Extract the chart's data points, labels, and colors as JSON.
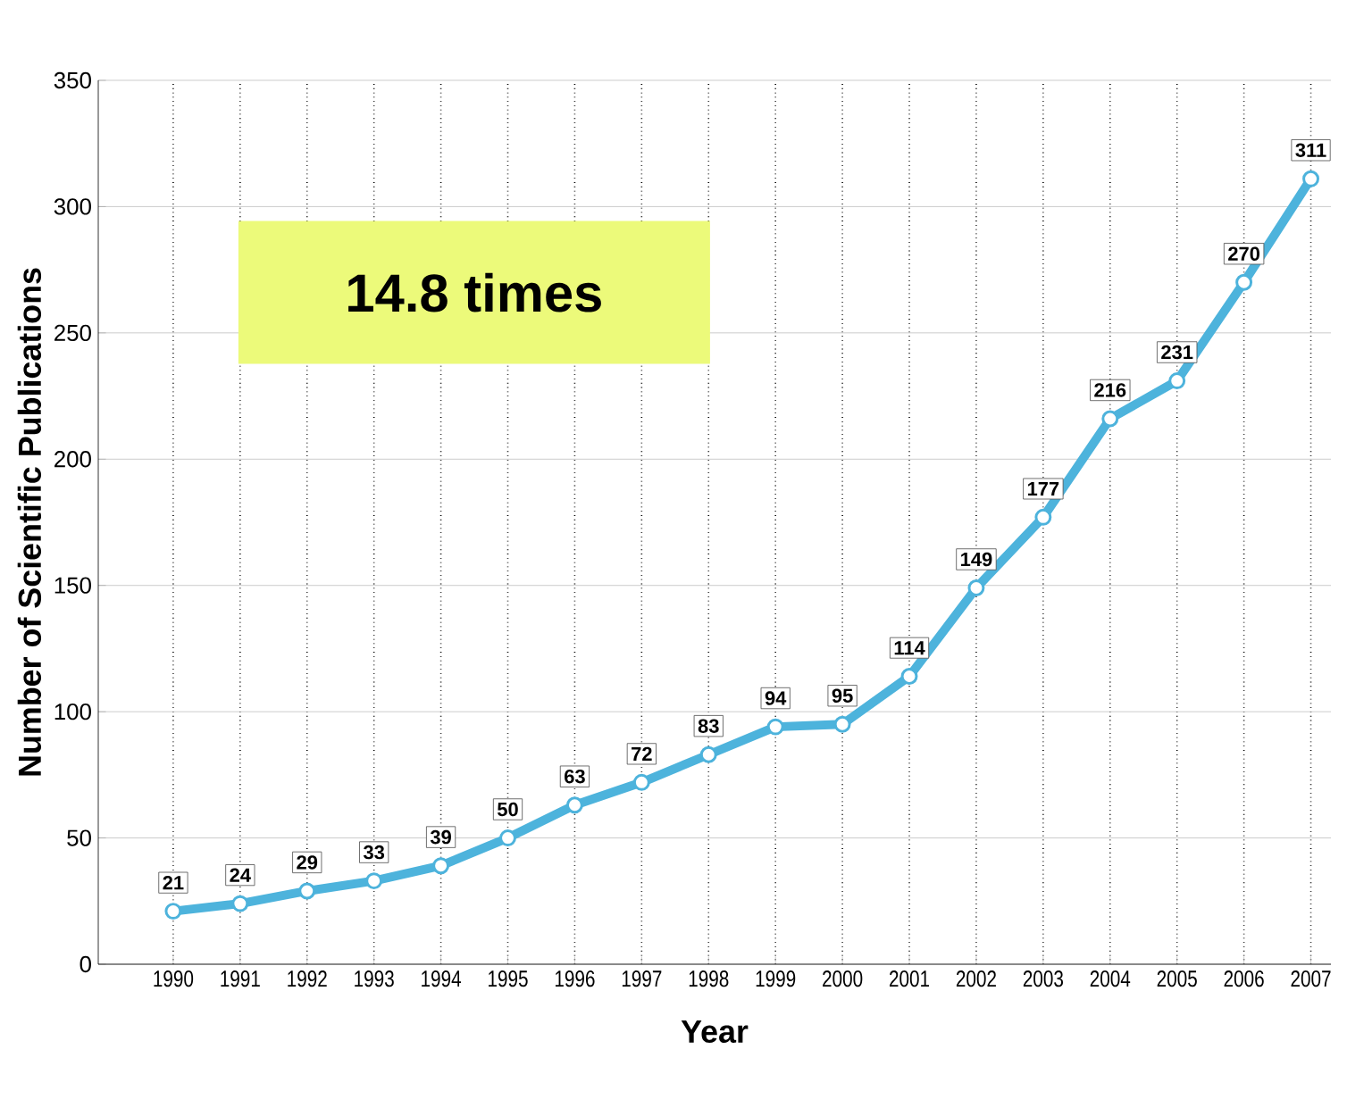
{
  "chart_data": {
    "type": "line",
    "xlabel": "Year",
    "ylabel": "Number of Scientific Publications",
    "categories": [
      "1990",
      "1991",
      "1992",
      "1993",
      "1994",
      "1995",
      "1996",
      "1997",
      "1998",
      "1999",
      "2000",
      "2001",
      "2002",
      "2003",
      "2004",
      "2005",
      "2006",
      "2007"
    ],
    "series": [
      {
        "color": "#4db3dc",
        "values": [
          21,
          24,
          29,
          33,
          39,
          50,
          63,
          72,
          83,
          94,
          95,
          114,
          149,
          177,
          216,
          231,
          270,
          311
        ]
      }
    ],
    "ylim": [
      0,
      350
    ],
    "yticks": [
      0,
      50,
      100,
      150,
      200,
      250,
      300,
      350
    ],
    "grid": true,
    "marker": "circle",
    "data_labels": true,
    "annotations": [
      "14.8 times"
    ]
  }
}
